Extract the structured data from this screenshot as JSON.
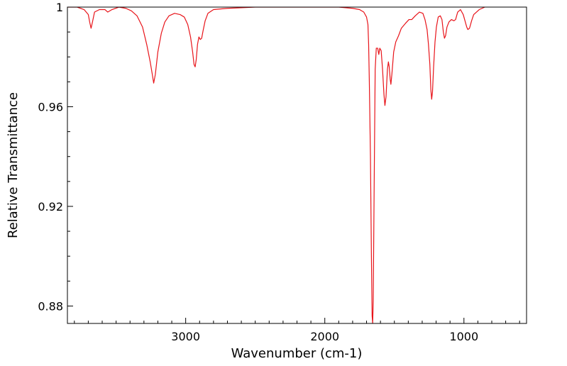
{
  "chart_data": {
    "type": "line",
    "title": "",
    "xlabel": "Wavenumber (cm-1)",
    "ylabel": "Relative Transmittance",
    "xlim": [
      3850,
      550
    ],
    "ylim": [
      0.873,
      1.0
    ],
    "x_inverted": true,
    "grid": false,
    "legend": "none",
    "x_ticks": [
      {
        "value": 3000,
        "label": "3000"
      },
      {
        "value": 2000,
        "label": "2000"
      },
      {
        "value": 1000,
        "label": "1000"
      }
    ],
    "y_ticks": [
      {
        "value": 1.0,
        "label": "1"
      },
      {
        "value": 0.96,
        "label": "0.96"
      },
      {
        "value": 0.92,
        "label": "0.92"
      },
      {
        "value": 0.88,
        "label": "0.88"
      }
    ],
    "x_minor_step": 100,
    "y_minor_step": 0.01,
    "series": [
      {
        "name": "",
        "color": "#e8141a",
        "points": [
          [
            3850,
            1.0
          ],
          [
            3780,
            1.0
          ],
          [
            3730,
            0.999
          ],
          [
            3700,
            0.997
          ],
          [
            3690,
            0.994
          ],
          [
            3680,
            0.9915
          ],
          [
            3670,
            0.994
          ],
          [
            3655,
            0.998
          ],
          [
            3620,
            0.999
          ],
          [
            3580,
            0.999
          ],
          [
            3560,
            0.998
          ],
          [
            3530,
            0.999
          ],
          [
            3480,
            1.0
          ],
          [
            3430,
            0.9995
          ],
          [
            3390,
            0.9985
          ],
          [
            3350,
            0.9965
          ],
          [
            3310,
            0.992
          ],
          [
            3280,
            0.985
          ],
          [
            3255,
            0.978
          ],
          [
            3240,
            0.973
          ],
          [
            3230,
            0.9695
          ],
          [
            3218,
            0.973
          ],
          [
            3200,
            0.982
          ],
          [
            3175,
            0.9895
          ],
          [
            3150,
            0.994
          ],
          [
            3120,
            0.9965
          ],
          [
            3080,
            0.9975
          ],
          [
            3040,
            0.997
          ],
          [
            3010,
            0.996
          ],
          [
            2985,
            0.993
          ],
          [
            2965,
            0.988
          ],
          [
            2950,
            0.982
          ],
          [
            2940,
            0.977
          ],
          [
            2932,
            0.976
          ],
          [
            2924,
            0.979
          ],
          [
            2915,
            0.985
          ],
          [
            2905,
            0.988
          ],
          [
            2895,
            0.987
          ],
          [
            2885,
            0.9875
          ],
          [
            2875,
            0.9905
          ],
          [
            2860,
            0.9945
          ],
          [
            2840,
            0.9975
          ],
          [
            2800,
            0.999
          ],
          [
            2700,
            0.9995
          ],
          [
            2500,
            1.0
          ],
          [
            2300,
            1.0
          ],
          [
            2100,
            1.0
          ],
          [
            1900,
            1.0
          ],
          [
            1800,
            0.9995
          ],
          [
            1750,
            0.999
          ],
          [
            1720,
            0.998
          ],
          [
            1700,
            0.996
          ],
          [
            1690,
            0.993
          ],
          [
            1685,
            0.985
          ],
          [
            1680,
            0.97
          ],
          [
            1672,
            0.94
          ],
          [
            1665,
            0.9
          ],
          [
            1660,
            0.876
          ],
          [
            1656,
            0.873
          ],
          [
            1652,
            0.882
          ],
          [
            1645,
            0.93
          ],
          [
            1638,
            0.975
          ],
          [
            1630,
            0.9835
          ],
          [
            1620,
            0.9835
          ],
          [
            1612,
            0.981
          ],
          [
            1605,
            0.9835
          ],
          [
            1595,
            0.9825
          ],
          [
            1585,
            0.975
          ],
          [
            1575,
            0.965
          ],
          [
            1568,
            0.9605
          ],
          [
            1560,
            0.964
          ],
          [
            1550,
            0.975
          ],
          [
            1543,
            0.978
          ],
          [
            1537,
            0.976
          ],
          [
            1530,
            0.971
          ],
          [
            1525,
            0.969
          ],
          [
            1518,
            0.973
          ],
          [
            1505,
            0.982
          ],
          [
            1490,
            0.986
          ],
          [
            1470,
            0.9885
          ],
          [
            1450,
            0.9915
          ],
          [
            1420,
            0.9935
          ],
          [
            1395,
            0.995
          ],
          [
            1375,
            0.995
          ],
          [
            1350,
            0.9965
          ],
          [
            1320,
            0.998
          ],
          [
            1295,
            0.9975
          ],
          [
            1280,
            0.995
          ],
          [
            1265,
            0.991
          ],
          [
            1255,
            0.985
          ],
          [
            1245,
            0.977
          ],
          [
            1238,
            0.967
          ],
          [
            1232,
            0.963
          ],
          [
            1226,
            0.966
          ],
          [
            1218,
            0.976
          ],
          [
            1208,
            0.986
          ],
          [
            1198,
            0.992
          ],
          [
            1185,
            0.996
          ],
          [
            1170,
            0.9965
          ],
          [
            1158,
            0.995
          ],
          [
            1148,
            0.99
          ],
          [
            1140,
            0.9875
          ],
          [
            1132,
            0.9885
          ],
          [
            1122,
            0.992
          ],
          [
            1108,
            0.994
          ],
          [
            1090,
            0.995
          ],
          [
            1072,
            0.9945
          ],
          [
            1060,
            0.995
          ],
          [
            1045,
            0.998
          ],
          [
            1025,
            0.999
          ],
          [
            1005,
            0.997
          ],
          [
            990,
            0.994
          ],
          [
            980,
            0.992
          ],
          [
            972,
            0.991
          ],
          [
            960,
            0.9915
          ],
          [
            945,
            0.9945
          ],
          [
            930,
            0.997
          ],
          [
            910,
            0.998
          ],
          [
            890,
            0.999
          ],
          [
            870,
            0.9995
          ],
          [
            850,
            1.0
          ]
        ]
      }
    ]
  }
}
